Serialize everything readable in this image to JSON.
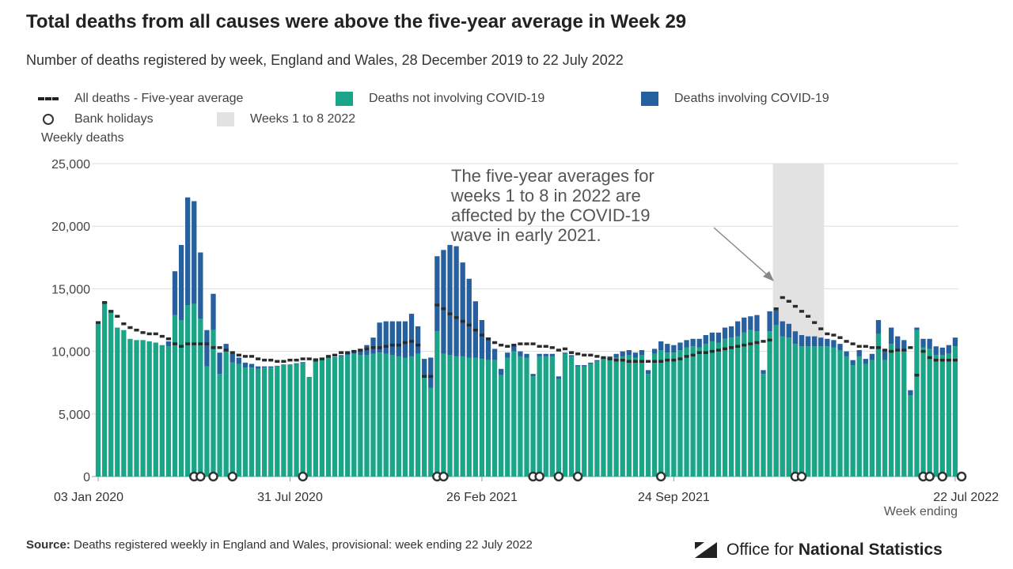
{
  "chart_data": {
    "type": "bar",
    "title": "Total deaths from all causes were above the five-year average in Week 29",
    "subtitle": "Number of deaths registered by week, England and Wales, 28 December 2019 to 22 July 2022",
    "ylabel": "Weekly deaths",
    "xlabel": "Week ending",
    "ylim": [
      0,
      25000
    ],
    "yticks": [
      "0",
      "5,000",
      "10,000",
      "15,000",
      "20,000",
      "25,000"
    ],
    "xticks": [
      {
        "label": "03 Jan 2020",
        "index": 0
      },
      {
        "label": "31 Jul 2020",
        "index": 30
      },
      {
        "label": "26 Feb 2021",
        "index": 60
      },
      {
        "label": "24 Sep 2021",
        "index": 90
      },
      {
        "label": "22 Jul 2022",
        "index": 134
      }
    ],
    "legend": [
      {
        "key": "avg",
        "label": "All deaths - Five-year average",
        "color": "#2b2b2b"
      },
      {
        "key": "non",
        "label": "Deaths not involving COVID-19",
        "color": "#1aa488"
      },
      {
        "key": "cov",
        "label": "Deaths involving COVID-19",
        "color": "#27609e"
      },
      {
        "key": "bank",
        "label": "Bank holidays",
        "color": "#333333"
      },
      {
        "key": "shade",
        "label": "Weeks 1 to 8 2022",
        "color": "#e2e2e2"
      }
    ],
    "annotation": "The five-year averages for weeks 1 to 8 in 2022 are affected by the COVID-19 wave in early 2021.",
    "shaded_weeks": [
      106,
      113
    ],
    "series": [
      {
        "name": "Deaths not involving COVID-19",
        "color": "#1aa488",
        "values": [
          12200,
          14000,
          13300,
          11900,
          11700,
          11000,
          10900,
          10900,
          10800,
          10700,
          10500,
          10400,
          12900,
          12500,
          13700,
          13800,
          12600,
          8800,
          11700,
          8200,
          10000,
          9100,
          9000,
          8700,
          8700,
          8600,
          8700,
          8700,
          8800,
          8900,
          8900,
          9000,
          9100,
          7900,
          9400,
          9400,
          9500,
          9500,
          9600,
          9700,
          9800,
          9700,
          9700,
          9800,
          9900,
          9800,
          9700,
          9600,
          9500,
          9600,
          9800,
          7900,
          7100,
          11600,
          9800,
          9700,
          9600,
          9600,
          9500,
          9500,
          9400,
          9300,
          9300,
          8100,
          9500,
          10000,
          9600,
          9500,
          8000,
          9600,
          9600,
          9600,
          7800,
          9800,
          9600,
          8800,
          8800,
          9000,
          9200,
          9400,
          9500,
          9500,
          9600,
          9700,
          9500,
          9700,
          8200,
          9800,
          10100,
          9900,
          9900,
          10100,
          10300,
          10400,
          10300,
          10600,
          10800,
          10700,
          11000,
          11100,
          11200,
          11500,
          11700,
          11600,
          8200,
          11600,
          12100,
          11200,
          11100,
          10600,
          10400,
          10400,
          10400,
          10400,
          10400,
          10300,
          10100,
          9600,
          8900,
          9600,
          9000,
          9300,
          11400,
          9300,
          10600,
          10200,
          10000,
          6500,
          11700,
          10300,
          10200,
          9700,
          9700,
          9800,
          10400
        ]
      },
      {
        "name": "Deaths involving COVID-19",
        "color": "#27609e",
        "values": [
          0,
          0,
          0,
          0,
          0,
          0,
          0,
          0,
          0,
          0,
          0,
          400,
          3500,
          6000,
          8600,
          8200,
          5300,
          2900,
          2900,
          1700,
          600,
          700,
          500,
          400,
          300,
          200,
          100,
          100,
          50,
          50,
          50,
          50,
          50,
          50,
          50,
          50,
          50,
          50,
          100,
          200,
          300,
          500,
          800,
          1300,
          2400,
          2600,
          2700,
          2800,
          2900,
          3400,
          2200,
          1500,
          2400,
          6000,
          8300,
          8800,
          8800,
          7500,
          6300,
          4500,
          3100,
          1800,
          900,
          500,
          400,
          500,
          400,
          300,
          200,
          200,
          200,
          200,
          200,
          100,
          100,
          100,
          100,
          100,
          100,
          100,
          100,
          300,
          400,
          400,
          400,
          400,
          300,
          400,
          700,
          700,
          600,
          600,
          600,
          600,
          700,
          700,
          700,
          800,
          900,
          900,
          1200,
          1200,
          1100,
          1300,
          300,
          1600,
          1200,
          1200,
          1100,
          1000,
          900,
          800,
          800,
          700,
          600,
          600,
          500,
          400,
          400,
          500,
          400,
          500,
          1100,
          700,
          1300,
          1000,
          900,
          400,
          200,
          700,
          800,
          700,
          600,
          700,
          700
        ]
      },
      {
        "name": "All deaths - Five-year average",
        "color": "#2b2b2b",
        "values": [
          12300,
          13900,
          13200,
          12800,
          12200,
          11900,
          11700,
          11500,
          11400,
          11400,
          11200,
          11000,
          10600,
          10400,
          10600,
          10600,
          10600,
          10600,
          10300,
          10300,
          10100,
          9900,
          9700,
          9600,
          9600,
          9400,
          9300,
          9300,
          9200,
          9200,
          9300,
          9300,
          9400,
          9400,
          9300,
          9400,
          9600,
          9700,
          9900,
          9900,
          10000,
          10100,
          10200,
          10300,
          10300,
          10400,
          10500,
          10500,
          10700,
          10800,
          10500,
          8000,
          8000,
          13700,
          13400,
          13000,
          12700,
          12400,
          12100,
          11700,
          11300,
          11000,
          10700,
          10500,
          10400,
          10500,
          10600,
          10600,
          10600,
          10400,
          10400,
          10300,
          10100,
          10200,
          9900,
          9800,
          9700,
          9700,
          9600,
          9500,
          9400,
          9300,
          9300,
          9200,
          9200,
          9200,
          9200,
          9200,
          9200,
          9300,
          9300,
          9400,
          9600,
          9700,
          9900,
          9900,
          10000,
          10100,
          10200,
          10300,
          10400,
          10500,
          10600,
          10700,
          10800,
          10900,
          13400,
          14300,
          14000,
          13600,
          13200,
          12800,
          12300,
          11800,
          11400,
          11300,
          11100,
          10800,
          10600,
          10400,
          10400,
          10300,
          10300,
          10100,
          10000,
          10100,
          10100,
          10300,
          8100,
          10000,
          9500,
          9300,
          9300,
          9300,
          9300
        ]
      }
    ],
    "bank_holiday_indices": [
      15,
      16,
      18,
      21,
      32,
      53,
      54,
      68,
      69,
      72,
      75,
      88,
      109,
      110,
      129,
      130,
      132,
      135
    ],
    "ylabel_unit": "",
    "source_label": "Source:",
    "source_text": "Deaths registered weekly in England and Wales, provisional: week ending 22 July 2022",
    "org_name_light": "Office for",
    "org_name_bold": "National Statistics"
  }
}
